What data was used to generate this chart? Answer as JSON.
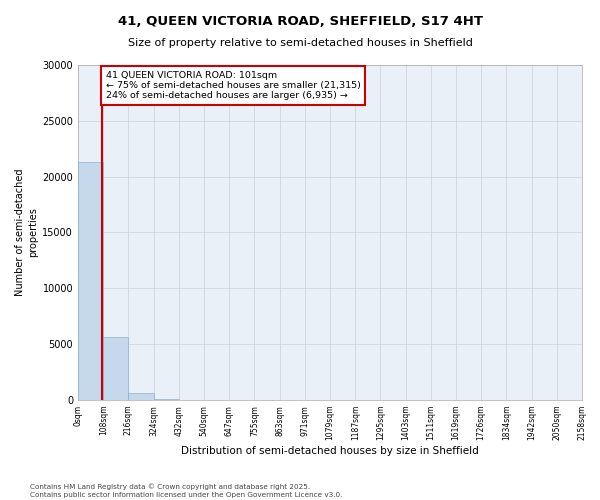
{
  "title_line1": "41, QUEEN VICTORIA ROAD, SHEFFIELD, S17 4HT",
  "title_line2": "Size of property relative to semi-detached houses in Sheffield",
  "xlabel": "Distribution of semi-detached houses by size in Sheffield",
  "ylabel": "Number of semi-detached\nproperties",
  "property_size": 101,
  "annotation_text_line1": "41 QUEEN VICTORIA ROAD: 101sqm",
  "annotation_text_line2": "← 75% of semi-detached houses are smaller (21,315)",
  "annotation_text_line3": "24% of semi-detached houses are larger (6,935) →",
  "bin_edges": [
    0,
    108,
    216,
    324,
    432,
    540,
    647,
    755,
    863,
    971,
    1079,
    1187,
    1295,
    1403,
    1511,
    1619,
    1726,
    1834,
    1942,
    2050,
    2158
  ],
  "bin_labels": [
    "0sqm",
    "108sqm",
    "216sqm",
    "324sqm",
    "432sqm",
    "540sqm",
    "647sqm",
    "755sqm",
    "863sqm",
    "971sqm",
    "1079sqm",
    "1187sqm",
    "1295sqm",
    "1403sqm",
    "1511sqm",
    "1619sqm",
    "1726sqm",
    "1834sqm",
    "1942sqm",
    "2050sqm",
    "2158sqm"
  ],
  "bar_heights": [
    21315,
    5600,
    650,
    120,
    30,
    10,
    5,
    3,
    2,
    1,
    1,
    0,
    0,
    0,
    0,
    0,
    0,
    0,
    0,
    0
  ],
  "bar_color": "#c5d8ec",
  "bar_edge_color": "#8ab0cc",
  "grid_color": "#d0d0d0",
  "background_color": "#eaf0f7",
  "red_line_color": "#cc0000",
  "annotation_box_color": "#cc0000",
  "ylim": [
    0,
    30000
  ],
  "yticks": [
    0,
    5000,
    10000,
    15000,
    20000,
    25000,
    30000
  ],
  "footer_text": "Contains HM Land Registry data © Crown copyright and database right 2025.\nContains public sector information licensed under the Open Government Licence v3.0."
}
